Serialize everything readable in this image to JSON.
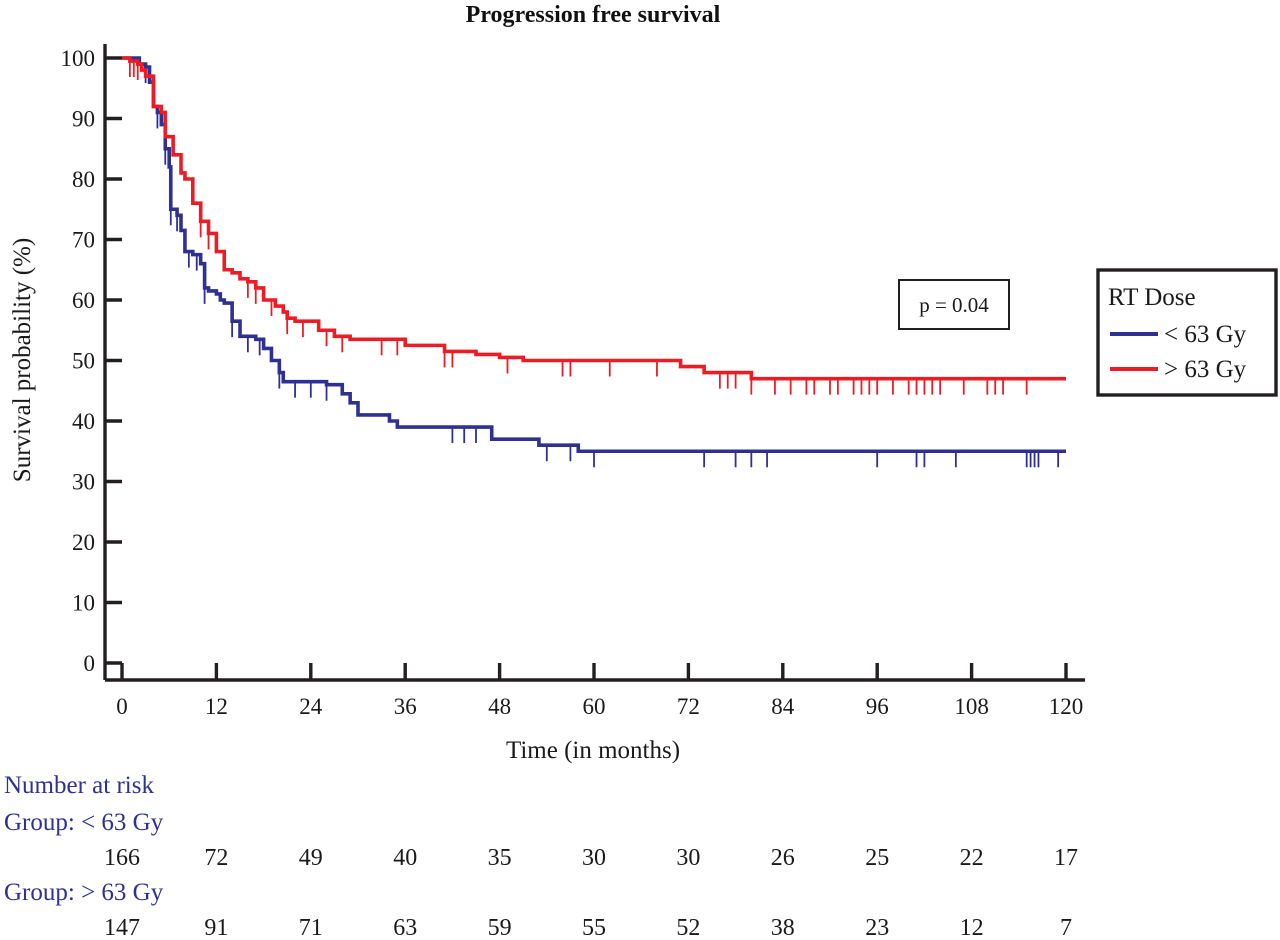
{
  "chart_data": {
    "type": "line",
    "title": "Progression free survival",
    "xlabel": "Time (in months)",
    "ylabel": "Survival probability (%)",
    "xlim": [
      0,
      120
    ],
    "ylim": [
      0,
      100
    ],
    "x_ticks": [
      0,
      12,
      24,
      36,
      48,
      60,
      72,
      84,
      96,
      108,
      120
    ],
    "y_ticks": [
      0,
      10,
      20,
      30,
      40,
      50,
      60,
      70,
      80,
      90,
      100
    ],
    "grid": false,
    "annotation": "p = 0.04",
    "legend": {
      "title": "RT Dose",
      "position": "right",
      "entries": [
        "< 63 Gy",
        "> 63 Gy"
      ]
    },
    "series": [
      {
        "name": "< 63 Gy",
        "color": "#2e3192",
        "step": true,
        "points": [
          [
            0,
            100
          ],
          [
            2,
            100
          ],
          [
            2.2,
            99
          ],
          [
            3,
            98.5
          ],
          [
            3.5,
            96
          ],
          [
            4,
            92
          ],
          [
            4.5,
            91
          ],
          [
            5,
            89
          ],
          [
            5.5,
            85
          ],
          [
            6,
            82
          ],
          [
            6.2,
            75
          ],
          [
            7,
            74
          ],
          [
            7.5,
            71.5
          ],
          [
            8,
            68
          ],
          [
            9,
            67.5
          ],
          [
            10,
            66
          ],
          [
            10.5,
            62
          ],
          [
            11,
            61.5
          ],
          [
            12,
            61
          ],
          [
            12.5,
            60
          ],
          [
            13,
            59.5
          ],
          [
            14,
            56.5
          ],
          [
            15,
            54
          ],
          [
            17,
            53.5
          ],
          [
            18,
            52
          ],
          [
            19,
            50
          ],
          [
            20,
            48
          ],
          [
            20.5,
            46.5
          ],
          [
            26,
            46
          ],
          [
            28,
            44.5
          ],
          [
            29,
            43
          ],
          [
            30,
            41
          ],
          [
            34,
            40
          ],
          [
            35,
            39
          ],
          [
            47,
            37
          ],
          [
            53,
            36
          ],
          [
            58,
            35
          ],
          [
            120,
            35
          ]
        ],
        "censored": [
          3,
          4.5,
          5.5,
          6.2,
          7,
          8.5,
          9.5,
          10.5,
          14,
          16,
          17.5,
          20,
          22,
          24,
          26,
          42,
          43.5,
          45,
          54,
          57,
          60,
          74,
          78,
          80,
          82,
          96,
          101,
          102,
          106,
          115,
          115.5,
          116,
          116.5,
          119
        ]
      },
      {
        "name": "> 63 Gy",
        "color": "#ed1c24",
        "step": true,
        "points": [
          [
            0,
            100
          ],
          [
            1,
            99.5
          ],
          [
            2,
            99
          ],
          [
            2.5,
            98
          ],
          [
            3,
            97
          ],
          [
            4,
            92
          ],
          [
            5,
            91
          ],
          [
            5.5,
            87
          ],
          [
            6.5,
            84
          ],
          [
            7.5,
            81
          ],
          [
            8,
            80
          ],
          [
            9,
            76
          ],
          [
            10,
            73
          ],
          [
            11,
            71
          ],
          [
            12,
            68
          ],
          [
            13,
            65
          ],
          [
            14,
            64.5
          ],
          [
            15,
            63.5
          ],
          [
            16,
            63
          ],
          [
            17,
            62
          ],
          [
            18,
            60
          ],
          [
            19.5,
            59
          ],
          [
            20.5,
            58
          ],
          [
            21,
            57
          ],
          [
            22,
            56.5
          ],
          [
            25,
            55
          ],
          [
            27,
            54
          ],
          [
            29,
            53.5
          ],
          [
            36,
            52.5
          ],
          [
            41,
            51.5
          ],
          [
            45,
            51
          ],
          [
            48,
            50.5
          ],
          [
            51,
            50
          ],
          [
            60,
            50
          ],
          [
            71,
            49
          ],
          [
            74,
            48
          ],
          [
            80,
            47
          ],
          [
            120,
            47
          ]
        ],
        "censored": [
          1,
          1.5,
          2,
          10,
          11,
          16,
          17,
          19,
          21,
          23,
          26,
          28,
          33,
          35,
          41,
          42,
          49,
          56,
          57,
          62,
          68,
          76,
          77,
          78,
          80,
          83,
          85,
          87,
          88,
          90,
          91,
          93,
          94,
          95,
          96,
          98,
          100,
          101,
          102,
          103,
          104,
          107,
          110,
          111,
          112,
          115
        ]
      }
    ]
  },
  "risk_table": {
    "title": "Number at risk",
    "times": [
      0,
      12,
      24,
      36,
      48,
      60,
      72,
      84,
      96,
      108,
      120
    ],
    "groups": [
      {
        "label": "Group: < 63 Gy",
        "values": [
          166,
          72,
          49,
          40,
          35,
          30,
          30,
          26,
          25,
          22,
          17
        ]
      },
      {
        "label": "Group: > 63 Gy",
        "values": [
          147,
          91,
          71,
          63,
          59,
          55,
          52,
          38,
          23,
          12,
          7
        ]
      }
    ],
    "label_color": "#2e3192"
  }
}
